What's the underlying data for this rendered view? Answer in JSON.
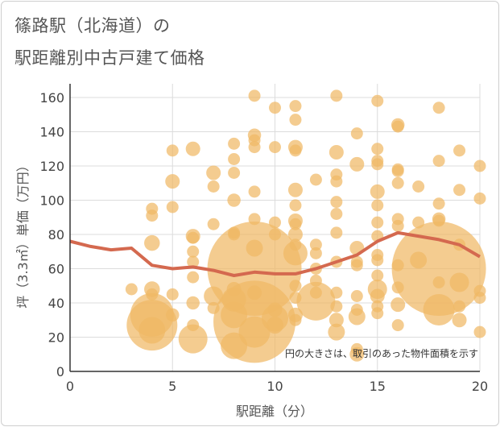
{
  "title_line1": "篠路駅（北海道）の",
  "title_line2": "駅距離別中古戸建て価格",
  "chart_data": {
    "type": "scatter",
    "title": "篠路駅（北海道）の 駅距離別中古戸建て価格",
    "xlabel": "駅距離（分）",
    "ylabel": "坪（3.3㎡）単価（万円）",
    "xlim": [
      0,
      20
    ],
    "ylim": [
      0,
      168
    ],
    "x_ticks": [
      0,
      5,
      10,
      15,
      20
    ],
    "y_ticks": [
      0,
      20,
      40,
      60,
      80,
      100,
      120,
      140,
      160
    ],
    "grid": true,
    "note": "円の大きさは、取引のあった物件面積を示す",
    "colors": {
      "bubble": "#f0b865",
      "line": "#d4694f",
      "grid": "#dcdcdc"
    },
    "trend": {
      "x": [
        0,
        1,
        2,
        3,
        4,
        5,
        6,
        7,
        8,
        9,
        10,
        11,
        12,
        13,
        14,
        15,
        16,
        17,
        18,
        19,
        20
      ],
      "y": [
        76,
        73,
        71,
        72,
        62,
        60,
        61,
        59,
        56,
        58,
        57,
        57,
        60,
        64,
        68,
        76,
        81,
        79,
        77,
        74,
        67
      ]
    },
    "points": [
      {
        "x": 3,
        "y": 48,
        "s": 1
      },
      {
        "x": 4,
        "y": 95,
        "s": 1
      },
      {
        "x": 4,
        "y": 91,
        "s": 1
      },
      {
        "x": 4,
        "y": 75,
        "s": 1.3
      },
      {
        "x": 4,
        "y": 48,
        "s": 1.3
      },
      {
        "x": 4,
        "y": 45,
        "s": 1
      },
      {
        "x": 4,
        "y": 33,
        "s": 3.6
      },
      {
        "x": 4,
        "y": 27,
        "s": 4.2
      },
      {
        "x": 4,
        "y": 24,
        "s": 2.2
      },
      {
        "x": 5,
        "y": 129,
        "s": 1
      },
      {
        "x": 5,
        "y": 111,
        "s": 1.2
      },
      {
        "x": 5,
        "y": 96,
        "s": 1
      },
      {
        "x": 5,
        "y": 45,
        "s": 1
      },
      {
        "x": 5,
        "y": 33,
        "s": 1.1
      },
      {
        "x": 6,
        "y": 130,
        "s": 1.2
      },
      {
        "x": 6,
        "y": 79,
        "s": 1.2
      },
      {
        "x": 6,
        "y": 78,
        "s": 1
      },
      {
        "x": 6,
        "y": 70,
        "s": 1
      },
      {
        "x": 6,
        "y": 64,
        "s": 1
      },
      {
        "x": 6,
        "y": 55,
        "s": 1
      },
      {
        "x": 6,
        "y": 40,
        "s": 1.1
      },
      {
        "x": 6,
        "y": 27,
        "s": 1
      },
      {
        "x": 6,
        "y": 19,
        "s": 2.4
      },
      {
        "x": 7,
        "y": 116,
        "s": 1.2
      },
      {
        "x": 7,
        "y": 108,
        "s": 1
      },
      {
        "x": 7,
        "y": 86,
        "s": 1
      },
      {
        "x": 7,
        "y": 44,
        "s": 1.6
      },
      {
        "x": 7,
        "y": 37,
        "s": 1
      },
      {
        "x": 8,
        "y": 133,
        "s": 1
      },
      {
        "x": 8,
        "y": 124,
        "s": 1
      },
      {
        "x": 8,
        "y": 116,
        "s": 1
      },
      {
        "x": 8,
        "y": 100,
        "s": 1.1
      },
      {
        "x": 8,
        "y": 81,
        "s": 1
      },
      {
        "x": 8,
        "y": 80,
        "s": 1
      },
      {
        "x": 8,
        "y": 48,
        "s": 1.2
      },
      {
        "x": 8,
        "y": 42,
        "s": 2
      },
      {
        "x": 8,
        "y": 33,
        "s": 2.2
      },
      {
        "x": 8,
        "y": 15,
        "s": 2.2
      },
      {
        "x": 9,
        "y": 161,
        "s": 1
      },
      {
        "x": 9,
        "y": 138,
        "s": 1.1
      },
      {
        "x": 9,
        "y": 135,
        "s": 1
      },
      {
        "x": 9,
        "y": 131,
        "s": 1
      },
      {
        "x": 9,
        "y": 105,
        "s": 1
      },
      {
        "x": 9,
        "y": 89,
        "s": 1
      },
      {
        "x": 9,
        "y": 72,
        "s": 1.4
      },
      {
        "x": 9,
        "y": 60,
        "s": 7.8
      },
      {
        "x": 9,
        "y": 46,
        "s": 1.2
      },
      {
        "x": 9,
        "y": 29,
        "s": 6.8
      },
      {
        "x": 9,
        "y": 23,
        "s": 2.6
      },
      {
        "x": 10,
        "y": 154,
        "s": 1
      },
      {
        "x": 10,
        "y": 131,
        "s": 1
      },
      {
        "x": 10,
        "y": 87,
        "s": 1
      },
      {
        "x": 10,
        "y": 80,
        "s": 1
      },
      {
        "x": 10,
        "y": 36,
        "s": 1.2
      },
      {
        "x": 10,
        "y": 31,
        "s": 2.2
      },
      {
        "x": 10,
        "y": 27,
        "s": 1.4
      },
      {
        "x": 11,
        "y": 155,
        "s": 1
      },
      {
        "x": 11,
        "y": 147,
        "s": 1
      },
      {
        "x": 11,
        "y": 131,
        "s": 1.2
      },
      {
        "x": 11,
        "y": 129,
        "s": 1
      },
      {
        "x": 11,
        "y": 106,
        "s": 1.2
      },
      {
        "x": 11,
        "y": 97,
        "s": 1
      },
      {
        "x": 11,
        "y": 88,
        "s": 1.2
      },
      {
        "x": 11,
        "y": 86,
        "s": 1
      },
      {
        "x": 11,
        "y": 80,
        "s": 1.2
      },
      {
        "x": 11,
        "y": 74,
        "s": 1
      },
      {
        "x": 11,
        "y": 69,
        "s": 2
      },
      {
        "x": 11,
        "y": 50,
        "s": 1
      },
      {
        "x": 11,
        "y": 43,
        "s": 1
      },
      {
        "x": 11,
        "y": 33,
        "s": 1.2
      },
      {
        "x": 11,
        "y": 30,
        "s": 1
      },
      {
        "x": 12,
        "y": 112,
        "s": 1
      },
      {
        "x": 12,
        "y": 74,
        "s": 1
      },
      {
        "x": 12,
        "y": 69,
        "s": 1
      },
      {
        "x": 12,
        "y": 60,
        "s": 1
      },
      {
        "x": 12,
        "y": 53,
        "s": 1
      },
      {
        "x": 12,
        "y": 46,
        "s": 1
      },
      {
        "x": 12,
        "y": 41,
        "s": 3.2
      },
      {
        "x": 13,
        "y": 161,
        "s": 1
      },
      {
        "x": 13,
        "y": 128,
        "s": 1.2
      },
      {
        "x": 13,
        "y": 115,
        "s": 1
      },
      {
        "x": 13,
        "y": 111,
        "s": 1
      },
      {
        "x": 13,
        "y": 99,
        "s": 1
      },
      {
        "x": 13,
        "y": 92,
        "s": 1
      },
      {
        "x": 13,
        "y": 81,
        "s": 1
      },
      {
        "x": 13,
        "y": 64,
        "s": 1
      },
      {
        "x": 13,
        "y": 46,
        "s": 1
      },
      {
        "x": 13,
        "y": 38,
        "s": 1
      },
      {
        "x": 13,
        "y": 30,
        "s": 1.2
      },
      {
        "x": 13,
        "y": 23,
        "s": 1.4
      },
      {
        "x": 14,
        "y": 139,
        "s": 1
      },
      {
        "x": 14,
        "y": 121,
        "s": 1.2
      },
      {
        "x": 14,
        "y": 72,
        "s": 1.2
      },
      {
        "x": 14,
        "y": 64,
        "s": 1
      },
      {
        "x": 14,
        "y": 62,
        "s": 1
      },
      {
        "x": 14,
        "y": 44,
        "s": 1
      },
      {
        "x": 14,
        "y": 36,
        "s": 1
      },
      {
        "x": 14,
        "y": 32,
        "s": 1.4
      },
      {
        "x": 14,
        "y": 13,
        "s": 1
      },
      {
        "x": 14,
        "y": 10,
        "s": 1.2
      },
      {
        "x": 15,
        "y": 158,
        "s": 1
      },
      {
        "x": 15,
        "y": 130,
        "s": 1
      },
      {
        "x": 15,
        "y": 123,
        "s": 1
      },
      {
        "x": 15,
        "y": 121,
        "s": 1
      },
      {
        "x": 15,
        "y": 105,
        "s": 1.2
      },
      {
        "x": 15,
        "y": 97,
        "s": 1
      },
      {
        "x": 15,
        "y": 87,
        "s": 1
      },
      {
        "x": 15,
        "y": 79,
        "s": 1
      },
      {
        "x": 15,
        "y": 68,
        "s": 1
      },
      {
        "x": 15,
        "y": 65,
        "s": 1
      },
      {
        "x": 15,
        "y": 56,
        "s": 1
      },
      {
        "x": 15,
        "y": 48,
        "s": 1.6
      },
      {
        "x": 15,
        "y": 44,
        "s": 1.2
      },
      {
        "x": 15,
        "y": 38,
        "s": 1
      },
      {
        "x": 15,
        "y": 34,
        "s": 1
      },
      {
        "x": 16,
        "y": 144,
        "s": 1.1
      },
      {
        "x": 16,
        "y": 143,
        "s": 1
      },
      {
        "x": 16,
        "y": 118,
        "s": 1
      },
      {
        "x": 16,
        "y": 117,
        "s": 1
      },
      {
        "x": 16,
        "y": 110,
        "s": 1
      },
      {
        "x": 16,
        "y": 89,
        "s": 1
      },
      {
        "x": 16,
        "y": 85,
        "s": 1
      },
      {
        "x": 16,
        "y": 62,
        "s": 1
      },
      {
        "x": 16,
        "y": 49,
        "s": 1
      },
      {
        "x": 16,
        "y": 39,
        "s": 1.2
      },
      {
        "x": 16,
        "y": 27,
        "s": 1
      },
      {
        "x": 17,
        "y": 108,
        "s": 1
      },
      {
        "x": 17,
        "y": 87,
        "s": 1
      },
      {
        "x": 17,
        "y": 65,
        "s": 1.4
      },
      {
        "x": 18,
        "y": 154,
        "s": 1
      },
      {
        "x": 18,
        "y": 123,
        "s": 1
      },
      {
        "x": 18,
        "y": 98,
        "s": 1
      },
      {
        "x": 18,
        "y": 89,
        "s": 1.1
      },
      {
        "x": 18,
        "y": 88,
        "s": 1
      },
      {
        "x": 18,
        "y": 60,
        "s": 7.8
      },
      {
        "x": 18,
        "y": 52,
        "s": 1
      },
      {
        "x": 18,
        "y": 36,
        "s": 2.6
      },
      {
        "x": 19,
        "y": 129,
        "s": 1
      },
      {
        "x": 19,
        "y": 106,
        "s": 1
      },
      {
        "x": 19,
        "y": 74,
        "s": 1
      },
      {
        "x": 19,
        "y": 52,
        "s": 1.6
      },
      {
        "x": 19,
        "y": 38,
        "s": 1
      },
      {
        "x": 19,
        "y": 30,
        "s": 1.2
      },
      {
        "x": 20,
        "y": 120,
        "s": 1
      },
      {
        "x": 20,
        "y": 101,
        "s": 1
      },
      {
        "x": 20,
        "y": 47,
        "s": 1
      },
      {
        "x": 20,
        "y": 43,
        "s": 1
      },
      {
        "x": 20,
        "y": 23,
        "s": 1
      }
    ]
  }
}
